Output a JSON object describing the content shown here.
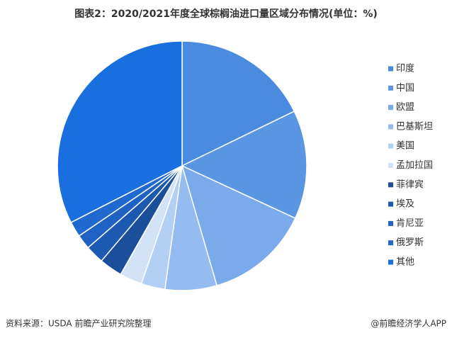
{
  "chart_data": {
    "type": "pie",
    "title": "图表2：2020/2021年度全球棕榈油进口量区域分布情况(单位：%)",
    "categories": [
      "印度",
      "中国",
      "欧盟",
      "巴基斯坦",
      "美国",
      "孟加拉国",
      "菲律宾",
      "埃及",
      "肯尼亚",
      "俄罗斯",
      "其他"
    ],
    "values": [
      17.8,
      14.1,
      13.6,
      6.7,
      3.1,
      2.9,
      3.0,
      2.4,
      1.9,
      2.0,
      32.5
    ],
    "colors": [
      "#4a8be0",
      "#5b96e4",
      "#7aaaeb",
      "#95bcf0",
      "#b2cff4",
      "#d2e3f8",
      "#1b4f9c",
      "#1d59b0",
      "#1f62c3",
      "#2069d0",
      "#1a6fe0"
    ],
    "legend": "right"
  },
  "footer": {
    "source": "资料来源：USDA 前瞻产业研究院整理",
    "credit": "@前瞻经济学人APP"
  }
}
